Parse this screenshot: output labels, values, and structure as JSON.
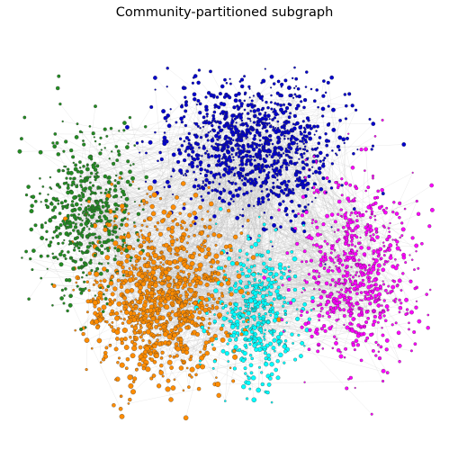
{
  "title": "Community-partitioned subgraph",
  "graph": {
    "edge_color": "#b0b0b0",
    "node_outline_color": "#333333",
    "communities": [
      {
        "color": "#0000cc",
        "name_hint": "blue"
      },
      {
        "color": "#ff8c00",
        "name_hint": "orange"
      },
      {
        "color": "#228b22",
        "name_hint": "green"
      },
      {
        "color": "#ff00ff",
        "name_hint": "magenta"
      },
      {
        "color": "#00ffff",
        "name_hint": "cyan"
      }
    ]
  }
}
